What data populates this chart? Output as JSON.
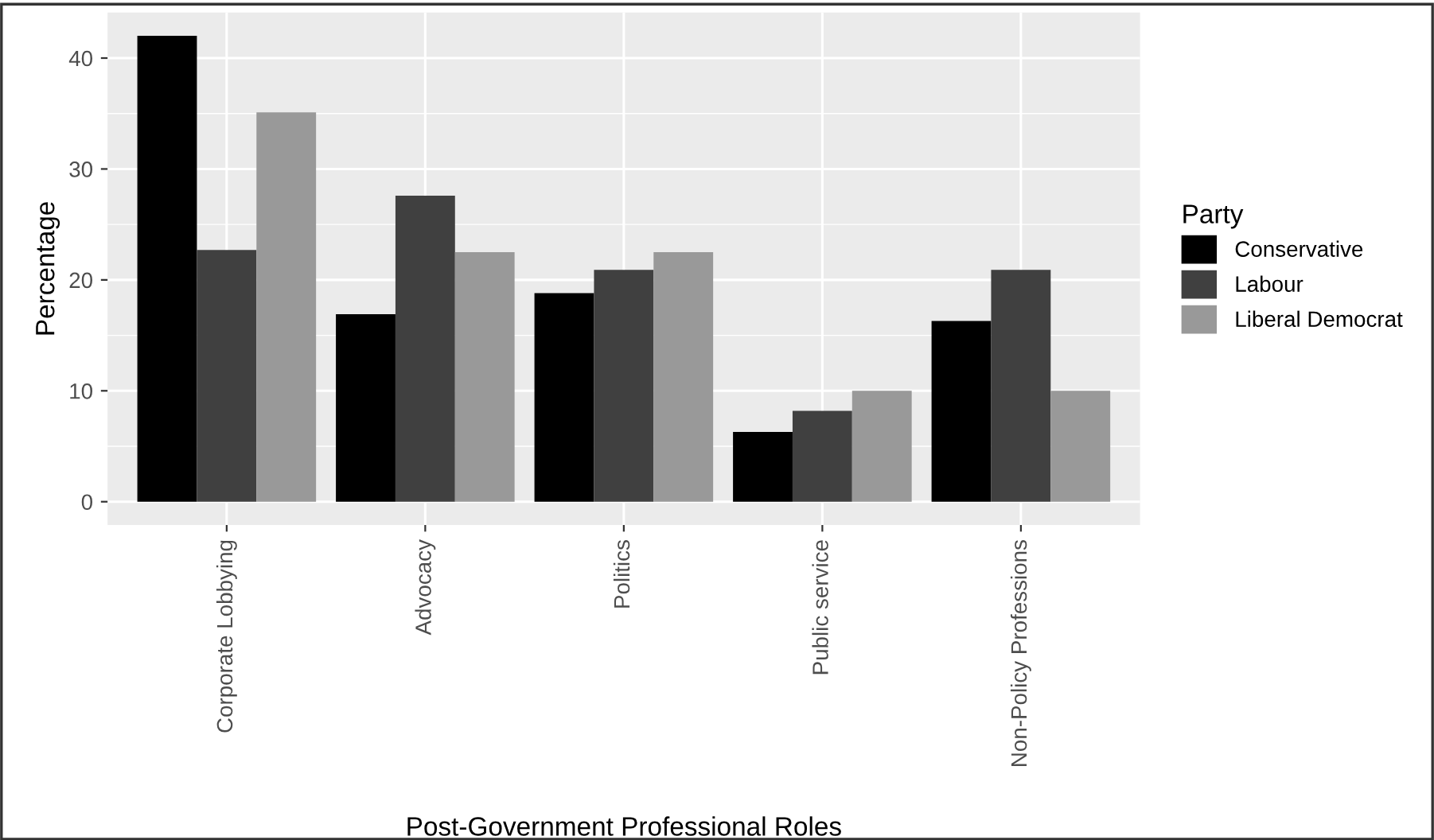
{
  "chart_data": {
    "type": "bar",
    "xlabel": "Post-Government Professional Roles",
    "ylabel": "Percentage",
    "legend_title": "Party",
    "categories": [
      "Corporate Lobbying",
      "Advocacy",
      "Politics",
      "Public service",
      "Non-Policy Professions"
    ],
    "series": [
      {
        "name": "Conservative",
        "color": "#000000",
        "values": [
          42.0,
          16.9,
          18.8,
          6.3,
          16.3
        ]
      },
      {
        "name": "Labour",
        "color": "#404040",
        "values": [
          22.7,
          27.6,
          20.9,
          8.2,
          20.9
        ]
      },
      {
        "name": "Liberal Democrat",
        "color": "#999999",
        "values": [
          35.1,
          22.5,
          22.5,
          10.0,
          10.0
        ]
      }
    ],
    "ylim": [
      -2.1,
      44.1
    ],
    "yticks": [
      0,
      10,
      20,
      30,
      40
    ],
    "grid": true,
    "legend": "right"
  }
}
